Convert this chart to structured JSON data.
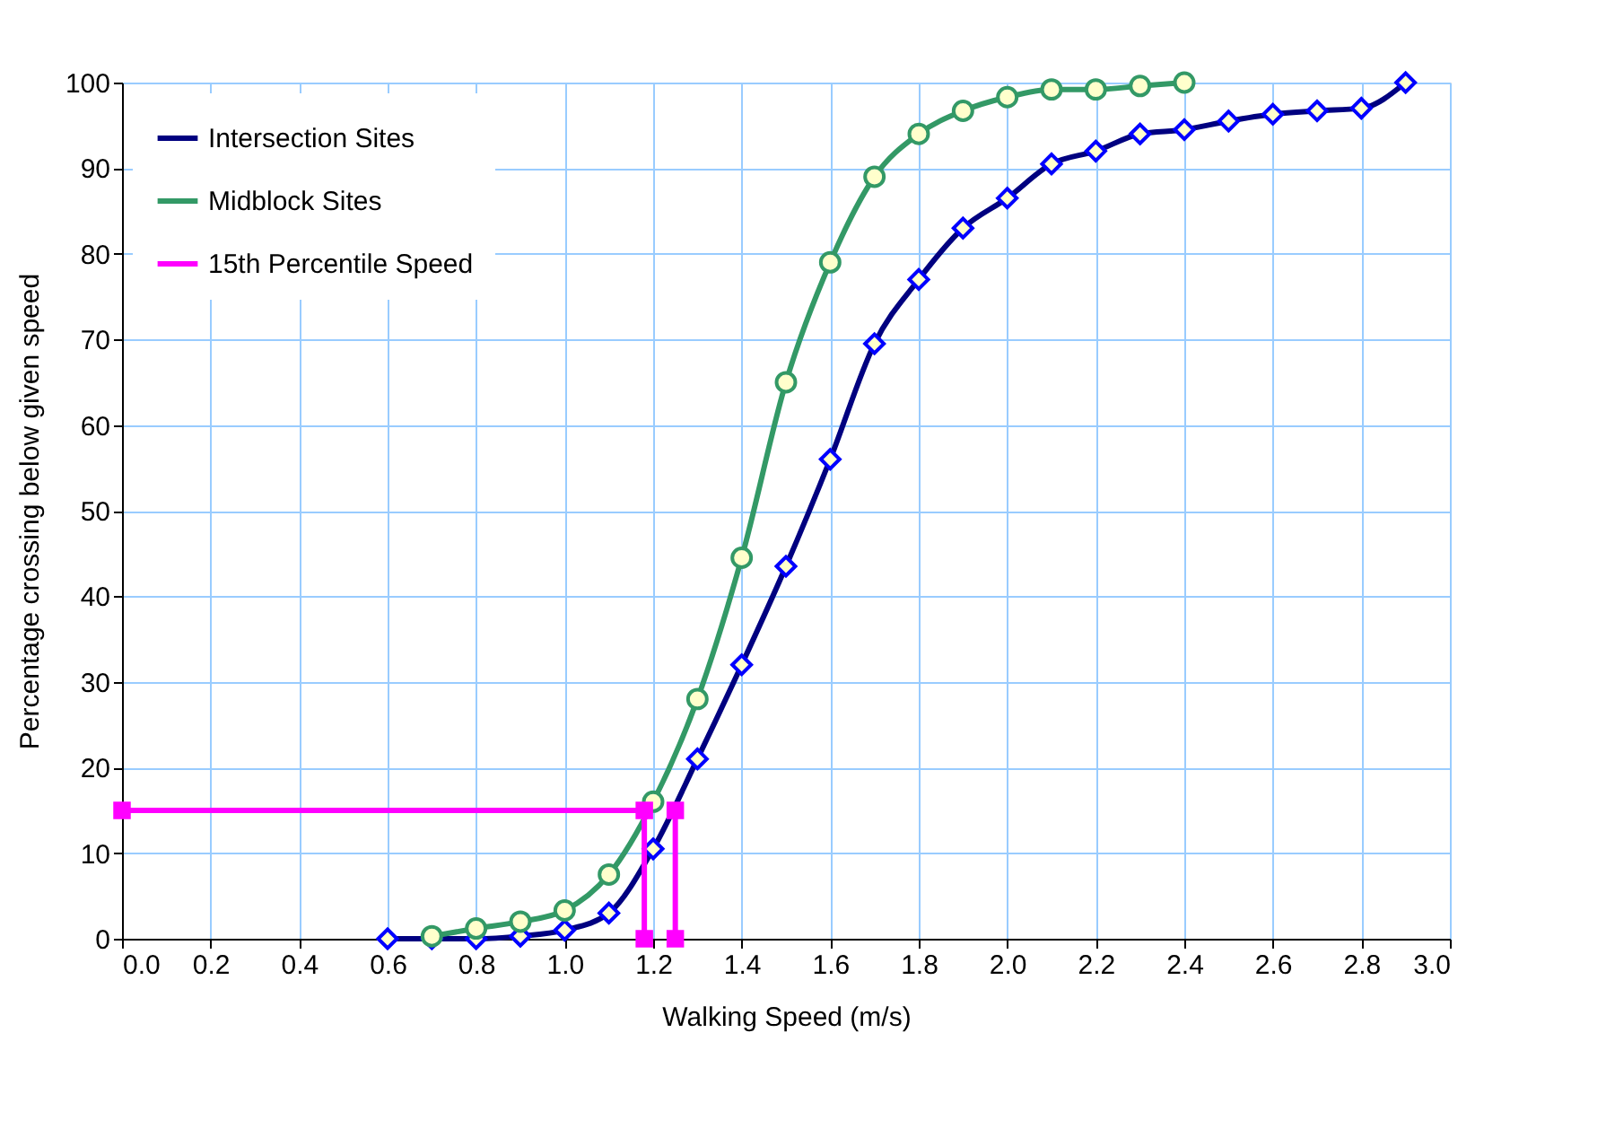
{
  "chart_data": {
    "type": "line",
    "xlabel": "Walking Speed (m/s)",
    "ylabel": "Percentage crossing below given speed",
    "xlim": [
      0,
      3
    ],
    "ylim": [
      0,
      100
    ],
    "xticks": [
      {
        "value": 0,
        "label": "0.0"
      },
      {
        "value": 0.2,
        "label": "0.2"
      },
      {
        "value": 0.4,
        "label": "0.4"
      },
      {
        "value": 0.6,
        "label": "0.6"
      },
      {
        "value": 0.8,
        "label": "0.8"
      },
      {
        "value": 1,
        "label": "1.0"
      },
      {
        "value": 1.2,
        "label": "1.2"
      },
      {
        "value": 1.4,
        "label": "1.4"
      },
      {
        "value": 1.6,
        "label": "1.6"
      },
      {
        "value": 1.8,
        "label": "1.8"
      },
      {
        "value": 2,
        "label": "2.0"
      },
      {
        "value": 2.2,
        "label": "2.2"
      },
      {
        "value": 2.4,
        "label": "2.4"
      },
      {
        "value": 2.6,
        "label": "2.6"
      },
      {
        "value": 2.8,
        "label": "2.8"
      },
      {
        "value": 3,
        "label": "3.0"
      }
    ],
    "yticks": [
      0,
      10,
      20,
      30,
      40,
      50,
      60,
      70,
      80,
      90,
      100
    ],
    "grid": true,
    "legend": "top left",
    "series": [
      {
        "name": "Intersection Sites",
        "color": "#000080",
        "marker": "diamond",
        "x": [
          0.6,
          0.7,
          0.8,
          0.9,
          1.0,
          1.1,
          1.2,
          1.3,
          1.4,
          1.5,
          1.6,
          1.7,
          1.8,
          1.9,
          2.0,
          2.1,
          2.2,
          2.3,
          2.4,
          2.5,
          2.6,
          2.7,
          2.8,
          2.9
        ],
        "values": [
          0,
          0,
          0,
          0.3,
          1,
          3,
          10.5,
          21,
          32,
          43.5,
          56,
          69.5,
          77,
          83,
          86.5,
          90.5,
          92,
          94,
          94.5,
          95.5,
          96.3,
          96.7,
          97,
          100
        ]
      },
      {
        "name": "Midblock Sites",
        "color": "#339966",
        "marker": "circle",
        "x": [
          0.7,
          0.8,
          0.9,
          1.0,
          1.1,
          1.2,
          1.3,
          1.4,
          1.5,
          1.6,
          1.7,
          1.8,
          1.9,
          2.0,
          2.1,
          2.2,
          2.3,
          2.4
        ],
        "values": [
          0.3,
          1.2,
          2,
          3.3,
          7.5,
          16,
          28,
          44.5,
          65,
          79,
          89,
          94,
          96.7,
          98.3,
          99.2,
          99.2,
          99.6,
          100
        ]
      },
      {
        "name": "15th Percentile Speed",
        "color": "#ff00ff",
        "marker": "square",
        "x": [
          0,
          1.18,
          1.18
        ],
        "values": [
          15,
          15,
          0
        ]
      },
      {
        "color": "#ff00ff",
        "marker": "square",
        "x": [
          1.25,
          1.25
        ],
        "values": [
          15,
          0
        ]
      }
    ]
  }
}
